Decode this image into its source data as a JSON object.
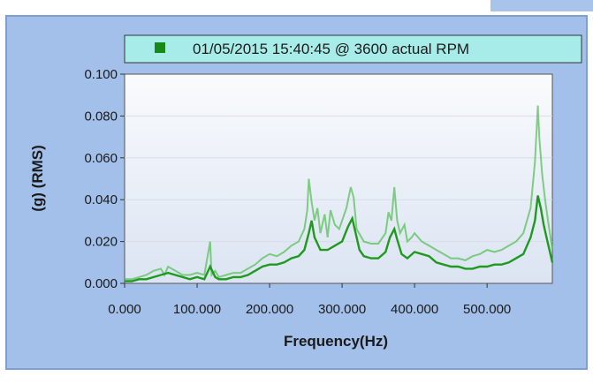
{
  "chart_data": {
    "type": "line",
    "xlabel": "Frequency(Hz)",
    "ylabel": "(g) (RMS)",
    "xlim": [
      0,
      590
    ],
    "ylim": [
      0,
      0.1
    ],
    "x_ticks": [
      {
        "value": 0,
        "label": "0.000"
      },
      {
        "value": 100,
        "label": "100.000"
      },
      {
        "value": 200,
        "label": "200.000"
      },
      {
        "value": 300,
        "label": "300.000"
      },
      {
        "value": 400,
        "label": "400.000"
      },
      {
        "value": 500,
        "label": "500.000"
      }
    ],
    "y_ticks": [
      {
        "value": 0,
        "label": "0.000"
      },
      {
        "value": 0.02,
        "label": "0.020"
      },
      {
        "value": 0.04,
        "label": "0.040"
      },
      {
        "value": 0.06,
        "label": "0.060"
      },
      {
        "value": 0.08,
        "label": "0.080"
      },
      {
        "value": 0.1,
        "label": "0.100"
      }
    ],
    "legend_position": "top",
    "series": [
      {
        "name": "01/05/2015 15:40:45 @ 3600 actual RPM",
        "color": "#1f9a1f",
        "x": [
          0,
          10,
          20,
          30,
          40,
          50,
          60,
          70,
          80,
          90,
          100,
          110,
          118,
          125,
          130,
          140,
          150,
          160,
          170,
          180,
          190,
          200,
          210,
          220,
          230,
          240,
          248,
          254,
          258,
          262,
          270,
          280,
          290,
          300,
          308,
          314,
          318,
          324,
          330,
          340,
          350,
          360,
          366,
          372,
          376,
          382,
          390,
          400,
          410,
          420,
          430,
          440,
          450,
          460,
          470,
          480,
          490,
          500,
          510,
          520,
          530,
          540,
          550,
          560,
          566,
          570,
          574,
          578,
          582,
          586,
          590
        ],
        "y": [
          0.001,
          0.001,
          0.002,
          0.002,
          0.003,
          0.004,
          0.005,
          0.004,
          0.003,
          0.002,
          0.003,
          0.002,
          0.008,
          0.003,
          0.002,
          0.002,
          0.003,
          0.003,
          0.004,
          0.006,
          0.008,
          0.009,
          0.009,
          0.01,
          0.012,
          0.013,
          0.016,
          0.024,
          0.03,
          0.022,
          0.016,
          0.016,
          0.018,
          0.02,
          0.027,
          0.031,
          0.025,
          0.016,
          0.013,
          0.012,
          0.012,
          0.015,
          0.022,
          0.026,
          0.021,
          0.014,
          0.012,
          0.015,
          0.014,
          0.013,
          0.01,
          0.009,
          0.008,
          0.008,
          0.007,
          0.007,
          0.008,
          0.008,
          0.009,
          0.009,
          0.01,
          0.012,
          0.014,
          0.022,
          0.03,
          0.042,
          0.036,
          0.028,
          0.022,
          0.016,
          0.01
        ]
      },
      {
        "name": "",
        "color": "#59c05b",
        "x": [
          0,
          10,
          20,
          30,
          40,
          50,
          55,
          60,
          70,
          80,
          90,
          100,
          110,
          118,
          120,
          125,
          130,
          140,
          150,
          160,
          170,
          180,
          190,
          200,
          210,
          220,
          230,
          240,
          248,
          252,
          254,
          258,
          262,
          266,
          270,
          276,
          280,
          284,
          290,
          296,
          300,
          306,
          312,
          316,
          320,
          330,
          340,
          350,
          360,
          364,
          368,
          372,
          376,
          380,
          386,
          390,
          396,
          400,
          410,
          420,
          430,
          440,
          450,
          460,
          470,
          480,
          490,
          500,
          510,
          520,
          530,
          540,
          550,
          560,
          566,
          570,
          572,
          576,
          580,
          584,
          590
        ],
        "y": [
          0.002,
          0.002,
          0.003,
          0.004,
          0.006,
          0.007,
          0.004,
          0.008,
          0.006,
          0.004,
          0.004,
          0.005,
          0.004,
          0.02,
          0.004,
          0.006,
          0.003,
          0.004,
          0.005,
          0.005,
          0.007,
          0.009,
          0.012,
          0.014,
          0.013,
          0.015,
          0.018,
          0.02,
          0.026,
          0.035,
          0.05,
          0.039,
          0.03,
          0.036,
          0.024,
          0.033,
          0.022,
          0.035,
          0.028,
          0.026,
          0.03,
          0.036,
          0.046,
          0.041,
          0.026,
          0.02,
          0.019,
          0.019,
          0.024,
          0.034,
          0.03,
          0.046,
          0.03,
          0.024,
          0.028,
          0.02,
          0.022,
          0.024,
          0.02,
          0.018,
          0.016,
          0.014,
          0.012,
          0.012,
          0.011,
          0.013,
          0.014,
          0.016,
          0.015,
          0.016,
          0.018,
          0.02,
          0.024,
          0.036,
          0.058,
          0.085,
          0.07,
          0.052,
          0.04,
          0.03,
          0.016
        ]
      }
    ]
  }
}
